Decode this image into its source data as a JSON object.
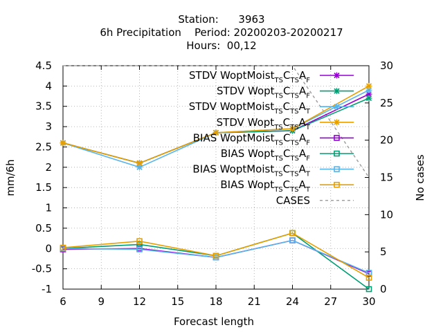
{
  "chart_data": {
    "type": "line",
    "title_lines": [
      "Station:      3963",
      "6h Precipitation    Period: 20200203-20200217",
      "Hours:  00,12"
    ],
    "xlabel": "Forecast length",
    "ylabel": "mm/6h",
    "y2label": "No cases",
    "x": [
      6,
      12,
      18,
      24,
      30
    ],
    "xticks": [
      "6",
      "9",
      "12",
      "15",
      "18",
      "21",
      "24",
      "27",
      "30"
    ],
    "xlim": [
      6,
      30
    ],
    "ylim": [
      -1,
      4.5
    ],
    "yticks": [
      "4.5",
      "4",
      "3.5",
      "3",
      "2.5",
      "2",
      "1.5",
      "1",
      "0.5",
      "0",
      "-0.5",
      "-1"
    ],
    "y2lim": [
      0,
      30
    ],
    "y2ticks": [
      "30",
      "25",
      "20",
      "15",
      "10",
      "5",
      "0"
    ],
    "grid": true,
    "legend_position": "top-right",
    "series": [
      {
        "name": "STDV WoptMoist",
        "sub": "TS",
        "mid": "C",
        "sub2": "TS",
        "tail": "A",
        "sub3": "F",
        "color": "#9400d3",
        "marker": "x",
        "values": [
          2.6,
          2.1,
          2.85,
          2.9,
          3.8
        ]
      },
      {
        "name": "STDV Wopt",
        "sub": "TS",
        "mid": "C",
        "sub2": "TS",
        "tail": "A",
        "sub3": "F",
        "color": "#009e73",
        "marker": "x",
        "values": [
          2.6,
          2.1,
          2.85,
          2.9,
          3.7
        ]
      },
      {
        "name": "STDV WoptMoist",
        "sub": "TS",
        "mid": "C",
        "sub2": "TS",
        "tail": "A",
        "sub3": "T",
        "color": "#56b4e9",
        "marker": "x",
        "values": [
          2.6,
          2.0,
          2.85,
          2.95,
          3.9
        ]
      },
      {
        "name": "STDV Wopt",
        "sub": "TS",
        "mid": "C",
        "sub2": "TS",
        "tail": "A",
        "sub3": "T",
        "color": "#e69f00",
        "marker": "x",
        "values": [
          2.6,
          2.1,
          2.85,
          2.95,
          4.0
        ]
      },
      {
        "name": "BIAS WoptMoist",
        "sub": "TS",
        "mid": "C",
        "sub2": "TS",
        "tail": "A",
        "sub3": "F",
        "color": "#9400d3",
        "marker": "square",
        "values": [
          -0.02,
          0.0,
          -0.22,
          0.2,
          -0.62
        ]
      },
      {
        "name": "BIAS Wopt",
        "sub": "TS",
        "mid": "C",
        "sub2": "TS",
        "tail": "A",
        "sub3": "F",
        "color": "#009e73",
        "marker": "square",
        "values": [
          0.0,
          0.1,
          -0.18,
          0.38,
          -1.0
        ]
      },
      {
        "name": "BIAS WoptMoist",
        "sub": "TS",
        "mid": "C",
        "sub2": "TS",
        "tail": "A",
        "sub3": "T",
        "color": "#56b4e9",
        "marker": "square",
        "values": [
          0.0,
          -0.02,
          -0.22,
          0.2,
          -0.6
        ]
      },
      {
        "name": "BIAS Wopt",
        "sub": "TS",
        "mid": "C",
        "sub2": "TS",
        "tail": "A",
        "sub3": "T",
        "color": "#e69f00",
        "marker": "square",
        "values": [
          0.02,
          0.18,
          -0.18,
          0.38,
          -0.72
        ]
      }
    ],
    "cases": {
      "name": "CASES",
      "color": "#a0a0a0",
      "axis": "y2",
      "x": [
        6,
        12,
        18,
        24,
        30
      ],
      "values": [
        30,
        30,
        30,
        30,
        15
      ]
    }
  }
}
